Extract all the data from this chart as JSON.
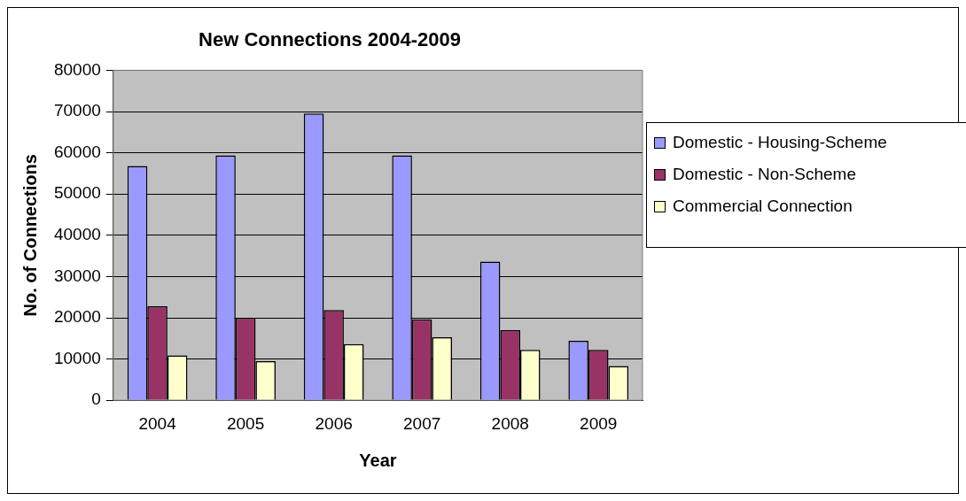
{
  "chart_data": {
    "type": "bar",
    "title": "New Connections 2004-2009",
    "xlabel": "Year",
    "ylabel": "No. of Connections",
    "categories": [
      "2004",
      "2005",
      "2006",
      "2007",
      "2008",
      "2009"
    ],
    "series": [
      {
        "name": "Domestic - Housing-Scheme",
        "color": "#9999ff",
        "values": [
          56800,
          59400,
          69500,
          59400,
          33600,
          14400
        ]
      },
      {
        "name": "Domestic - Non-Scheme",
        "color": "#993366",
        "values": [
          22800,
          20000,
          21900,
          19600,
          17000,
          12200
        ]
      },
      {
        "name": "Commercial Connection",
        "color": "#ffffcc",
        "values": [
          10900,
          9500,
          13600,
          15300,
          12200,
          8300
        ]
      }
    ],
    "ylim": [
      0,
      80000
    ],
    "yticks": [
      0,
      10000,
      20000,
      30000,
      40000,
      50000,
      60000,
      70000,
      80000
    ],
    "grid": "y",
    "legend": "right"
  }
}
